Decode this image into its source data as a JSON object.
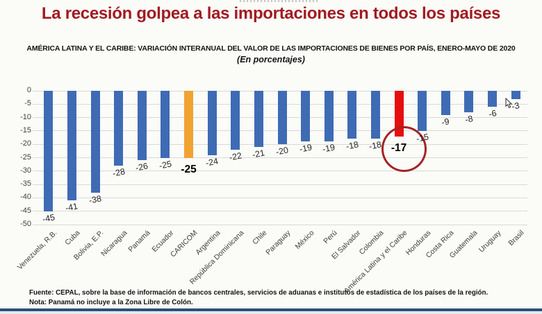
{
  "slide": {
    "title": "La recesión golpea a las importaciones en todos los países",
    "footer_source": "Fuente: CEPAL, sobre la base de información de bancos centrales, servicios de aduanas e institutos de estadística de los países de la región.",
    "footer_note": "Nota: Panamá no incluye a la Zona Libre de Colón."
  },
  "colors": {
    "blue": "#3E6BB4",
    "orange": "#F0A331",
    "red": "#E60E0E",
    "circle": "#A32323",
    "title_red": "#A01B21",
    "gridline": "#D9D9D9"
  },
  "chart_data": {
    "type": "bar",
    "title": "AMÉRICA LATINA Y EL CARIBE: VARIACIÓN INTERANUAL DEL VALOR DE LAS IMPORTACIONES DE BIENES POR PAÍS, ENERO-MAYO DE 2020",
    "subtitle": "(En porcentajes)",
    "xlabel": "",
    "ylabel": "",
    "ylim": [
      -50,
      0
    ],
    "yticks": [
      0,
      -5,
      -10,
      -15,
      -20,
      -25,
      -30,
      -35,
      -40,
      -45,
      -50
    ],
    "grid": true,
    "legend": false,
    "items": [
      {
        "label": "Venezuela, R.B.",
        "value": -45,
        "color": "blue",
        "bold": false,
        "circled": false
      },
      {
        "label": "Cuba",
        "value": -41,
        "color": "blue",
        "bold": false,
        "circled": false
      },
      {
        "label": "Bolivia, E.P.",
        "value": -38,
        "color": "blue",
        "bold": false,
        "circled": false
      },
      {
        "label": "Nicaragua",
        "value": -28,
        "color": "blue",
        "bold": false,
        "circled": false
      },
      {
        "label": "Panamá",
        "value": -26,
        "color": "blue",
        "bold": false,
        "circled": false
      },
      {
        "label": "Ecuador",
        "value": -25,
        "color": "blue",
        "bold": false,
        "circled": false
      },
      {
        "label": "CARICOM",
        "value": -25,
        "color": "orange",
        "bold": true,
        "circled": false
      },
      {
        "label": "Argentina",
        "value": -24,
        "color": "blue",
        "bold": false,
        "circled": false
      },
      {
        "label": "República Dominicana",
        "value": -22,
        "color": "blue",
        "bold": false,
        "circled": false
      },
      {
        "label": "Chile",
        "value": -21,
        "color": "blue",
        "bold": false,
        "circled": false
      },
      {
        "label": "Paraguay",
        "value": -20,
        "color": "blue",
        "bold": false,
        "circled": false
      },
      {
        "label": "México",
        "value": -19,
        "color": "blue",
        "bold": false,
        "circled": false
      },
      {
        "label": "Perú",
        "value": -19,
        "color": "blue",
        "bold": false,
        "circled": false
      },
      {
        "label": "El Salvador",
        "value": -18,
        "color": "blue",
        "bold": false,
        "circled": false
      },
      {
        "label": "Colombia",
        "value": -18,
        "color": "blue",
        "bold": false,
        "circled": false
      },
      {
        "label": "América Latina y el Caribe",
        "value": -17,
        "color": "red",
        "bold": true,
        "circled": true
      },
      {
        "label": "Honduras",
        "value": -15,
        "color": "blue",
        "bold": false,
        "circled": false
      },
      {
        "label": "Costa Rica",
        "value": -9,
        "color": "blue",
        "bold": false,
        "circled": false
      },
      {
        "label": "Guatemala",
        "value": -8,
        "color": "blue",
        "bold": false,
        "circled": false
      },
      {
        "label": "Uruguay",
        "value": -6,
        "color": "blue",
        "bold": false,
        "circled": false
      },
      {
        "label": "Brasil",
        "value": -3,
        "color": "blue",
        "bold": false,
        "circled": false
      }
    ]
  }
}
